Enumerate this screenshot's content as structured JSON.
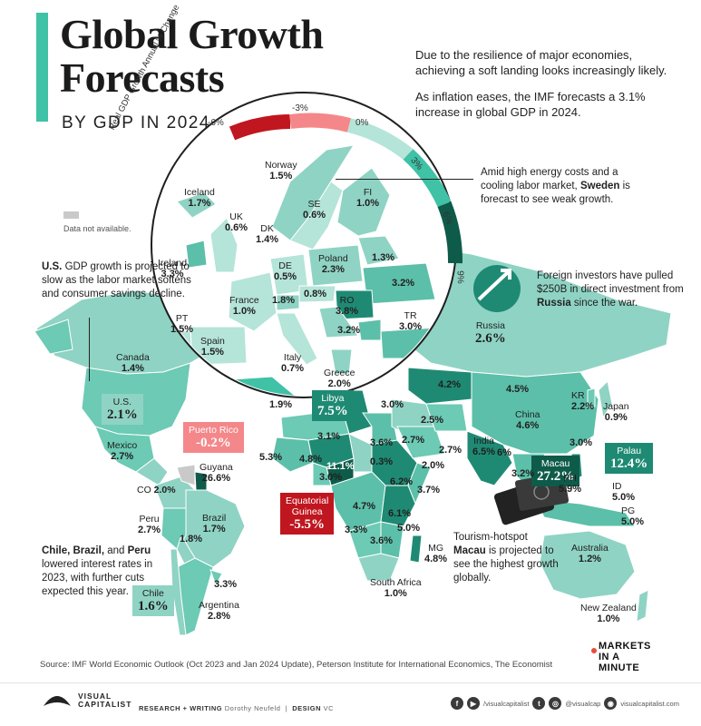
{
  "header": {
    "title": "Global Growth\nForecasts",
    "subtitle": "BY GDP IN 2024",
    "intro_1": "Due to the resilience of major economies, achieving a soft landing looks increasingly likely.",
    "intro_2": "As inflation eases, the IMF forecasts a 3.1% increase in global GDP in 2024."
  },
  "scale": {
    "axis_label": "Real GDP Growth Annual % Change",
    "ticks": [
      "-6%",
      "-3%",
      "0%",
      "3%",
      "6%",
      "9%"
    ]
  },
  "legend": {
    "na_label": "Data not available."
  },
  "notes": {
    "sweden": {
      "pre": "Amid high energy costs and a cooling labor market, ",
      "bold": "Sweden",
      "post": " is forecast to see weak growth."
    },
    "russia": {
      "pre": "Foreign investors have pulled $250B in direct investment from ",
      "bold": "Russia",
      "post": " since the war."
    },
    "us": {
      "bold": "U.S.",
      "post": " GDP growth is projected to slow as the labor market softens and consumer savings decline."
    },
    "latam": {
      "bold": "Chile, Brazil,",
      "mid": " and ",
      "bold2": "Peru",
      "post": " lowered interest rates in 2023, with further cuts expected this year."
    },
    "macau": {
      "pre": "Tourism-hotspot ",
      "bold": "Macau",
      "post": " is projected to see the highest growth globally."
    }
  },
  "countries": {
    "norway": {
      "name": "Norway",
      "value": "1.5%"
    },
    "iceland": {
      "name": "Iceland",
      "value": "1.7%"
    },
    "se": {
      "name": "SE",
      "value": "0.6%"
    },
    "fi": {
      "name": "FI",
      "value": "1.0%"
    },
    "uk": {
      "name": "UK",
      "value": "0.6%"
    },
    "dk": {
      "name": "DK",
      "value": "1.4%"
    },
    "ireland": {
      "name": "Ireland",
      "value": "3.3%"
    },
    "de": {
      "name": "DE",
      "value": "0.5%"
    },
    "poland": {
      "name": "Poland",
      "value": "2.3%"
    },
    "baltic": {
      "value": "1.3%"
    },
    "ua_region": {
      "value": "3.2%"
    },
    "france": {
      "name": "France",
      "value": "1.0%"
    },
    "ch": {
      "value": "1.8%"
    },
    "at": {
      "value": "0.8%"
    },
    "ro": {
      "name": "RO",
      "value": "3.8%"
    },
    "bg": {
      "value": "3.2%"
    },
    "tr": {
      "name": "TR",
      "value": "3.0%"
    },
    "pt": {
      "name": "PT",
      "value": "1.5%"
    },
    "spain": {
      "name": "Spain",
      "value": "1.5%"
    },
    "italy": {
      "name": "Italy",
      "value": "0.7%"
    },
    "greece": {
      "name": "Greece",
      "value": "2.0%"
    },
    "russia": {
      "name": "Russia",
      "value": "2.6%"
    },
    "canada": {
      "name": "Canada",
      "value": "1.4%"
    },
    "us": {
      "name": "U.S.",
      "value": "2.1%"
    },
    "mexico": {
      "name": "Mexico",
      "value": "2.7%"
    },
    "puerto_rico": {
      "name": "Puerto Rico",
      "value": "-0.2%"
    },
    "guyana": {
      "name": "Guyana",
      "value": "26.6%"
    },
    "co": {
      "name": "CO",
      "value": "2.0%"
    },
    "peru": {
      "name": "Peru",
      "value": "2.7%"
    },
    "brazil": {
      "name": "Brazil",
      "value": "1.7%"
    },
    "bolivia": {
      "value": "1.8%"
    },
    "uruguay": {
      "value": "3.3%"
    },
    "chile": {
      "name": "Chile",
      "value": "1.6%"
    },
    "argentina": {
      "name": "Argentina",
      "value": "2.8%"
    },
    "libya": {
      "name": "Libya",
      "value": "7.5%"
    },
    "algeria": {
      "value": "1.9%"
    },
    "maghreb": {
      "value": "3.1%"
    },
    "egypt": {
      "value": "3.6%"
    },
    "west_africa": {
      "value": "5.3%"
    },
    "sahel": {
      "value": "4.8%"
    },
    "nigeria": {
      "value": "3.0%"
    },
    "niger": {
      "value": "11.1%"
    },
    "chad": {
      "value": "0.3%"
    },
    "ethiopia": {
      "value": "6.2%"
    },
    "somalia": {
      "value": "3.7%"
    },
    "congo": {
      "value": "4.7%"
    },
    "tanzania": {
      "value": "6.1%"
    },
    "mozambique": {
      "value": "5.0%"
    },
    "angola": {
      "value": "3.3%"
    },
    "zimbabwe": {
      "value": "3.6%"
    },
    "mg": {
      "name": "MG",
      "value": "4.8%"
    },
    "equatorial_guinea": {
      "name": "Equatorial\nGuinea",
      "value": "-5.5%"
    },
    "south_africa": {
      "name": "South Africa",
      "value": "1.0%"
    },
    "mideast": {
      "value": "3.0%"
    },
    "iran": {
      "value": "2.5%"
    },
    "kazakh": {
      "value": "4.2%"
    },
    "saudi": {
      "value": "2.7%"
    },
    "pakistan": {
      "value": "2.0%"
    },
    "oman": {
      "value": "2.7%"
    },
    "mongolia": {
      "value": "4.5%"
    },
    "china": {
      "name": "China",
      "value": "4.6%"
    },
    "kr": {
      "name": "KR",
      "value": "2.2%"
    },
    "japan": {
      "name": "Japan",
      "value": "0.9%"
    },
    "india": {
      "name": "India",
      "value": "6.5%"
    },
    "bangladesh": {
      "value": "6%"
    },
    "taiwan": {
      "value": "3.0%"
    },
    "macau": {
      "name": "Macau",
      "value": "27.2%"
    },
    "palau": {
      "name": "Palau",
      "value": "12.4%"
    },
    "malaysia": {
      "value": "3.2%"
    },
    "ph": {
      "name": "PH",
      "value": "5.9%"
    },
    "id": {
      "name": "ID",
      "value": "5.0%"
    },
    "pg": {
      "name": "PG",
      "value": "5.0%"
    },
    "australia": {
      "name": "Australia",
      "value": "1.2%"
    },
    "new_zealand": {
      "name": "New Zealand",
      "value": "1.0%"
    }
  },
  "colors": {
    "accent": "#3fc2a6",
    "land": "#8fd3c4",
    "land_mid": "#5cbfa9",
    "land_dark": "#1f8a73",
    "land_darkest": "#0e5b4a",
    "negative": "#f4878a",
    "negative_dark": "#c0161f",
    "na": "#c9c9c9"
  },
  "source": "Source:  IMF World Economic Outlook (Oct 2023 and Jan 2024 Update), Peterson Institute for International Economics, The Economist",
  "footer": {
    "brand_top": "VISUAL",
    "brand_bottom": "CAPITALIST",
    "credits_label": "RESEARCH + WRITING",
    "credits_name": "Dorothy Neufeld",
    "design_label": "DESIGN",
    "design_name": "VC",
    "handle_yt": "/visualcapitalist",
    "handle_ig": "@visualcap",
    "site": "visualcapitalist.com",
    "mim_1": "MARKETS",
    "mim_2": "IN A",
    "mim_3": "MINUTE"
  }
}
